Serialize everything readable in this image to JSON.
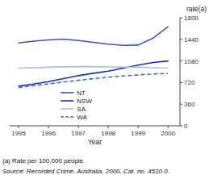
{
  "chart_data": {
    "type": "line",
    "xlabel": "Year",
    "ylabel": "rate(a)",
    "x": [
      1995,
      1995.5,
      1996,
      1996.5,
      1997,
      1997.5,
      1998,
      1998.5,
      1999,
      1999.5,
      2000
    ],
    "series": [
      {
        "name": "NT",
        "color": "#3355cc",
        "line_style": "solid",
        "values": [
          1380,
          1410,
          1430,
          1445,
          1420,
          1390,
          1360,
          1340,
          1345,
          1460,
          1650
        ]
      },
      {
        "name": "NSW",
        "color": "#1133bb",
        "line_style": "solid",
        "values": [
          660,
          695,
          735,
          785,
          835,
          875,
          910,
          960,
          1010,
          1055,
          1080
        ]
      },
      {
        "name": "SA",
        "color": "#aabbdd",
        "line_style": "solid",
        "values": [
          960,
          968,
          975,
          982,
          985,
          985,
          980,
          978,
          975,
          968,
          960
        ]
      },
      {
        "name": "WA",
        "color": "#4466cc",
        "line_style": "dashed",
        "values": [
          638,
          668,
          698,
          728,
          758,
          785,
          810,
          830,
          848,
          862,
          870
        ]
      }
    ],
    "xlim": [
      1994.7,
      2000.4
    ],
    "xticks": [
      1995,
      1996,
      1997,
      1998,
      1999,
      2000
    ],
    "ylim": [
      0,
      1800
    ],
    "yticks": [
      0,
      360,
      720,
      1080,
      1440,
      1800
    ],
    "grid": false,
    "legend": "lower center",
    "annotations": [
      "(a) Rate per 100,000 people.",
      "Source: Recorded Crime, Australia, 2000, Cat. no. 4510.0."
    ]
  }
}
